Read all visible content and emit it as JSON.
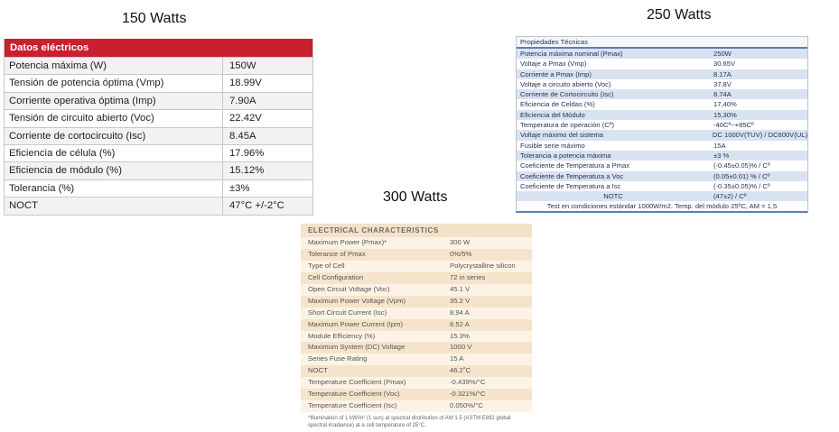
{
  "titles": {
    "t150": "150 Watts",
    "t250": "250 Watts",
    "t300": "300 Watts"
  },
  "panel150": {
    "header": "Datos eléctricos",
    "rows": [
      [
        "Potencia máxima (W)",
        "150W"
      ],
      [
        "Tensión de potencia óptima (Vmp)",
        "18.99V"
      ],
      [
        "Corriente operativa óptima (Imp)",
        "7.90A"
      ],
      [
        "Tensión de circuito abierto (Voc)",
        "22.42V"
      ],
      [
        "Corriente de cortocircuito (Isc)",
        "8.45A"
      ],
      [
        "Eficiencia de célula (%)",
        "17.96%"
      ],
      [
        "Eficiencia de módulo (%)",
        "15.12%"
      ],
      [
        "Tolerancia (%)",
        "±3%"
      ],
      [
        "NOCT",
        "47°C +/-2°C"
      ]
    ]
  },
  "panel250": {
    "header": "Propiedades Técnicas",
    "rows": [
      [
        "Potencia máxima nominal (Pmax)",
        "250W"
      ],
      [
        "Voltaje a Pmax (Vmp)",
        "30.65V"
      ],
      [
        "Corriente a Pmax (Imp)",
        "8.17A"
      ],
      [
        "Voltaje a circuito abierto (Voc)",
        "37.8V"
      ],
      [
        "Corriente de Cortocircuito (Isc)",
        "8.74A"
      ],
      [
        "Eficiencia de Celdas (%)",
        "17,40%"
      ],
      [
        "Eficiencia del Módulo",
        "15,30%"
      ],
      [
        "Temperatura de operación (Cº)",
        "-40Cº~+85Cº"
      ],
      [
        "Voltaje máximo del sistema",
        "DC 1000V(TUV) / DC600V(UL)"
      ],
      [
        "Fusible serie máximo",
        "15A"
      ],
      [
        "Tolerancia a potencia máxima",
        "±3 %"
      ],
      [
        "Coeficiente de Temperatura a  Pmax",
        "(-0.45±0.05)% / Cº"
      ],
      [
        "Coeficiente de Temperatura a  Voc",
        "(0.05±0.01) % / Cº"
      ],
      [
        "Coeficiente de Temperatura a  Isc",
        "(-0.35±0.05)% / Cº"
      ]
    ],
    "notc_label": "NOTC",
    "notc_value": "(47±2) / Cº",
    "footer": "Test en condiciones estándar 1000W/m2. Temp. del módulo 25ºC, AM = 1,5"
  },
  "panel300": {
    "header": "ELECTRICAL CHARACTERISTICS",
    "rows": [
      [
        "Maximum Power (Pmax)*",
        "300 W"
      ],
      [
        "Tolerance of Pmax",
        "0%/5%"
      ],
      [
        "Type of Cell",
        "Polycrystalline silicon"
      ],
      [
        "Cell Configuration",
        "72 in series"
      ],
      [
        "Open Circuit Voltage (Voc)",
        "45.1 V"
      ],
      [
        "Maximum Power Voltage (Vpm)",
        "35.2 V"
      ],
      [
        "Short Circuit Current (Isc)",
        "8.94 A"
      ],
      [
        "Maximum Power Current (Ipm)",
        "8.52 A"
      ],
      [
        "Module Efficiency (%)",
        "15.3%"
      ],
      [
        "Maximum System (DC) Voltage",
        "1000 V"
      ],
      [
        "Series Fuse Rating",
        "15 A"
      ],
      [
        "NOCT",
        "46.2˚C"
      ],
      [
        "Temperature Coefficient (Pmax)",
        "-0.439%/°C"
      ],
      [
        "Temperature Coefficient (Voc)",
        "-0.321%/°C"
      ],
      [
        "Temperature Coefficient (Isc)",
        "0.050%/°C"
      ]
    ],
    "note": "*Illumination of 1 kW/m² (1 sun) at spectral distribution of AM 1.5 (ASTM E892 global spectral irradiance) at a cell temperature of 25°C."
  }
}
